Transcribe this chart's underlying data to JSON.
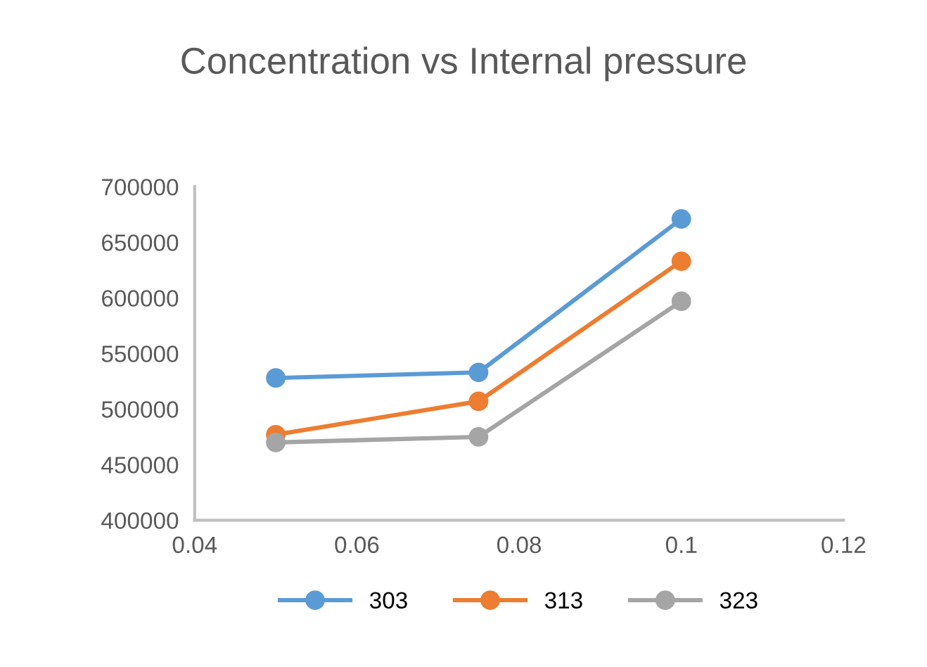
{
  "chart_data": {
    "type": "line",
    "title": "Concentration vs Internal pressure",
    "x": [
      0.05,
      0.075,
      0.1
    ],
    "series": [
      {
        "name": "303",
        "color": "#5b9bd5",
        "values": [
          528000,
          533000,
          671000
        ]
      },
      {
        "name": "313",
        "color": "#ed7d31",
        "values": [
          477000,
          507000,
          633000
        ]
      },
      {
        "name": "323",
        "color": "#a5a5a5",
        "values": [
          470000,
          475000,
          597000
        ]
      }
    ],
    "xlim": [
      0.04,
      0.12
    ],
    "xticks": [
      0.04,
      0.06,
      0.08,
      0.1,
      0.12
    ],
    "ylim": [
      400000,
      700000
    ],
    "yticks": [
      400000,
      450000,
      500000,
      550000,
      600000,
      650000,
      700000
    ],
    "grid": false,
    "legend": "bottom",
    "marker": "circle",
    "line_style": "solid"
  }
}
